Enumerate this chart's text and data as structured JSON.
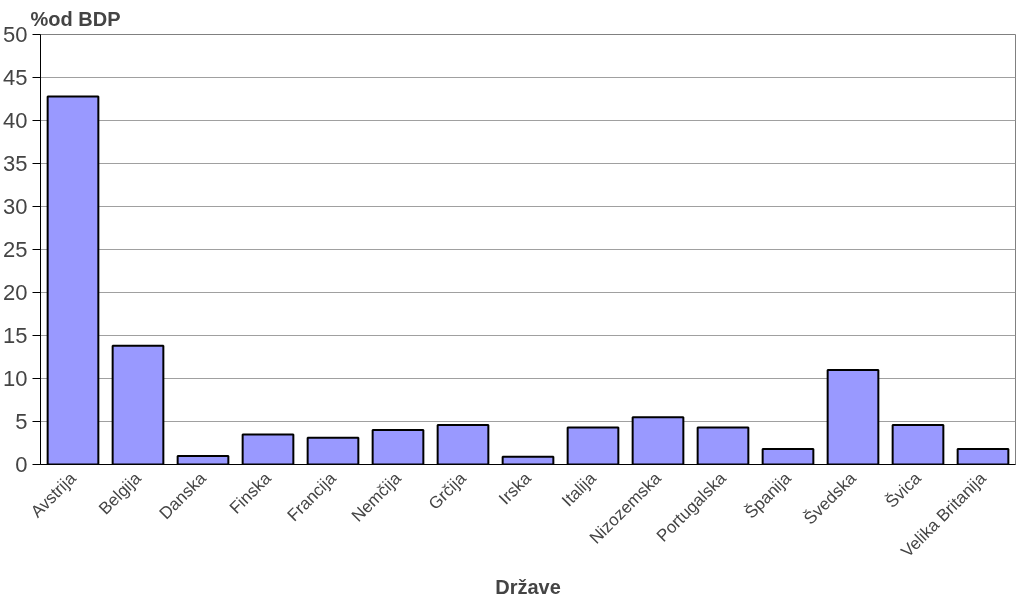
{
  "chart_data": {
    "type": "bar",
    "ylabel": "%od BDP",
    "xlabel": "Države",
    "categories": [
      "Avstrija",
      "Belgija",
      "Danska",
      "Finska",
      "Francija",
      "Nemčija",
      "Grčija",
      "Irska",
      "Italija",
      "Nizozemska",
      "Portugalska",
      "Španija",
      "Švedska",
      "Švica",
      "Velika Britanija"
    ],
    "values": [
      42.8,
      13.8,
      1.0,
      3.5,
      3.1,
      4.0,
      4.6,
      0.9,
      4.3,
      5.5,
      4.3,
      1.8,
      11.0,
      4.6,
      1.8
    ],
    "color": "#9999ff",
    "ylim": [
      0,
      50
    ],
    "yticks": [
      0,
      5,
      10,
      15,
      20,
      25,
      30,
      35,
      40,
      45,
      50
    ],
    "grid": "y"
  }
}
